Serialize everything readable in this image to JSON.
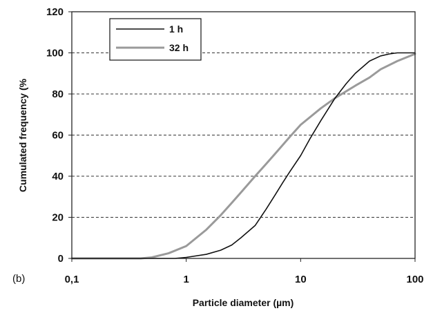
{
  "panel_label": "(b)",
  "chart_data": {
    "type": "line",
    "title": "",
    "xlabel": "Particle diameter (µm)",
    "ylabel": "Cumulated frequency (%",
    "x_scale": "log",
    "xlim": [
      0.1,
      100
    ],
    "ylim": [
      0,
      120
    ],
    "x_ticks": [
      0.1,
      1,
      10,
      100
    ],
    "x_tick_labels": [
      "0,1",
      "1",
      "10",
      "100"
    ],
    "y_ticks": [
      0,
      20,
      40,
      60,
      80,
      100,
      120
    ],
    "y_tick_labels": [
      "0",
      "20",
      "40",
      "60",
      "80",
      "100",
      "120"
    ],
    "grid": "horizontal dashed",
    "legend_position": "top-left",
    "series": [
      {
        "name": "1 h",
        "color": "#111111",
        "points": [
          [
            0.1,
            0
          ],
          [
            0.5,
            0
          ],
          [
            0.8,
            0
          ],
          [
            1,
            0.5
          ],
          [
            1.5,
            2
          ],
          [
            2,
            4
          ],
          [
            2.5,
            6.5
          ],
          [
            3,
            10
          ],
          [
            4,
            16
          ],
          [
            5,
            24
          ],
          [
            6,
            31
          ],
          [
            7,
            37
          ],
          [
            8,
            42
          ],
          [
            10,
            50
          ],
          [
            12,
            58
          ],
          [
            15,
            67
          ],
          [
            20,
            78
          ],
          [
            25,
            85
          ],
          [
            30,
            90
          ],
          [
            40,
            96
          ],
          [
            50,
            98.5
          ],
          [
            60,
            99.5
          ],
          [
            70,
            100
          ],
          [
            100,
            100
          ]
        ]
      },
      {
        "name": "32 h",
        "color": "#9a9a9a",
        "points": [
          [
            0.1,
            0
          ],
          [
            0.4,
            0
          ],
          [
            0.5,
            0.5
          ],
          [
            0.7,
            2.5
          ],
          [
            1,
            6
          ],
          [
            1.5,
            14
          ],
          [
            2,
            21
          ],
          [
            2.5,
            27
          ],
          [
            3,
            32
          ],
          [
            4,
            40
          ],
          [
            5,
            46
          ],
          [
            6,
            51
          ],
          [
            8,
            59
          ],
          [
            10,
            65
          ],
          [
            15,
            73
          ],
          [
            20,
            78
          ],
          [
            30,
            84
          ],
          [
            40,
            88
          ],
          [
            50,
            92
          ],
          [
            70,
            96
          ],
          [
            100,
            99.5
          ]
        ]
      }
    ]
  }
}
